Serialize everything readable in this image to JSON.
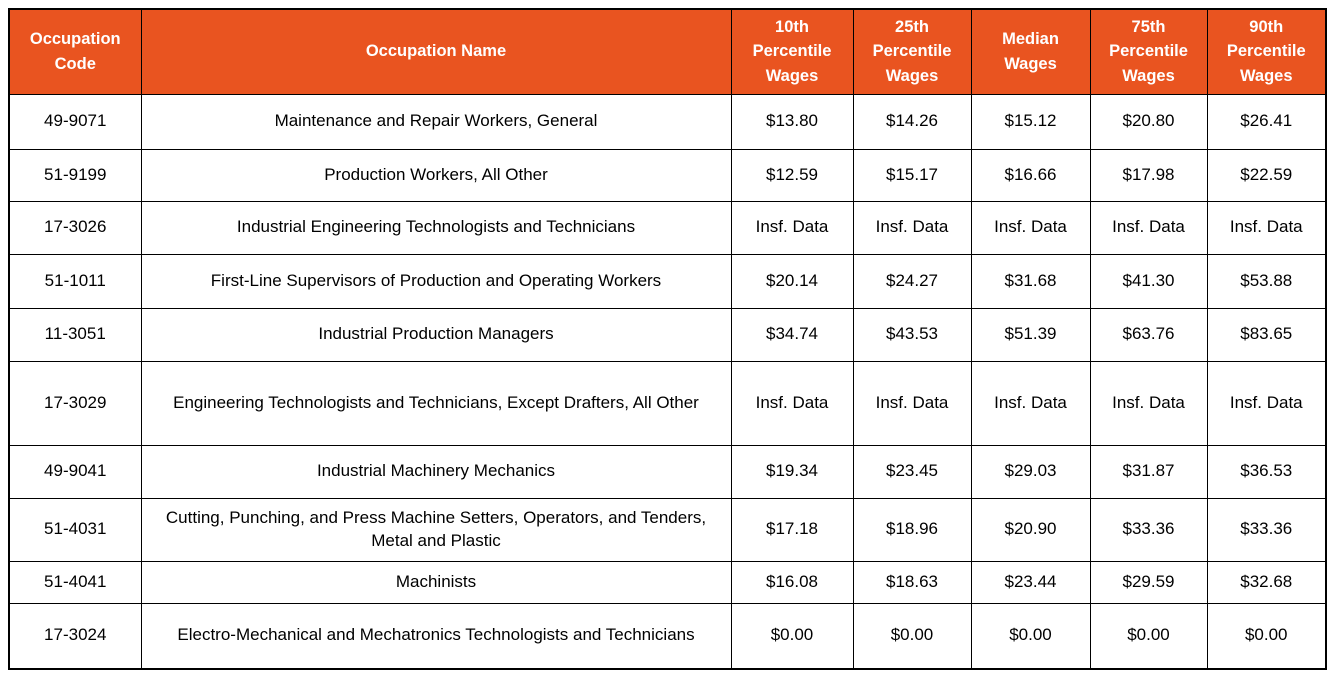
{
  "chart_data": {
    "type": "table",
    "columns": [
      "Occupation Code",
      "Occupation Name",
      "10th Percentile Wages",
      "25th Percentile Wages",
      "Median Wages",
      "75th Percentile Wages",
      "90th Percentile Wages"
    ],
    "rows": [
      {
        "code": "49-9071",
        "name": "Maintenance and Repair Workers, General",
        "wages": [
          "$13.80",
          "$14.26",
          "$15.12",
          "$20.80",
          "$26.41"
        ]
      },
      {
        "code": "51-9199",
        "name": "Production Workers, All Other",
        "wages": [
          "$12.59",
          "$15.17",
          "$16.66",
          "$17.98",
          "$22.59"
        ]
      },
      {
        "code": "17-3026",
        "name": "Industrial Engineering Technologists and Technicians",
        "wages": [
          "Insf. Data",
          "Insf. Data",
          "Insf. Data",
          "Insf. Data",
          "Insf. Data"
        ]
      },
      {
        "code": "51-1011",
        "name": "First-Line Supervisors of Production and Operating Workers",
        "wages": [
          "$20.14",
          "$24.27",
          "$31.68",
          "$41.30",
          "$53.88"
        ]
      },
      {
        "code": "11-3051",
        "name": "Industrial Production Managers",
        "wages": [
          "$34.74",
          "$43.53",
          "$51.39",
          "$63.76",
          "$83.65"
        ]
      },
      {
        "code": "17-3029",
        "name": "Engineering Technologists and Technicians, Except Drafters, All Other",
        "wages": [
          "Insf. Data",
          "Insf. Data",
          "Insf. Data",
          "Insf. Data",
          "Insf. Data"
        ]
      },
      {
        "code": "49-9041",
        "name": "Industrial Machinery Mechanics",
        "wages": [
          "$19.34",
          "$23.45",
          "$29.03",
          "$31.87",
          "$36.53"
        ]
      },
      {
        "code": "51-4031",
        "name": "Cutting, Punching, and Press Machine Setters, Operators, and Tenders, Metal and Plastic",
        "wages": [
          "$17.18",
          "$18.96",
          "$20.90",
          "$33.36",
          "$33.36"
        ]
      },
      {
        "code": "51-4041",
        "name": "Machinists",
        "wages": [
          "$16.08",
          "$18.63",
          "$23.44",
          "$29.59",
          "$32.68"
        ]
      },
      {
        "code": "17-3024",
        "name": "Electro-Mechanical and Mechatronics Technologists and Technicians",
        "wages": [
          "$0.00",
          "$0.00",
          "$0.00",
          "$0.00",
          "$0.00"
        ]
      }
    ]
  },
  "colors": {
    "header_bg": "#E95420",
    "header_text": "#FFFFFF",
    "body_text": "#000000",
    "border": "#000000",
    "row_bg": "#FFFFFF"
  }
}
